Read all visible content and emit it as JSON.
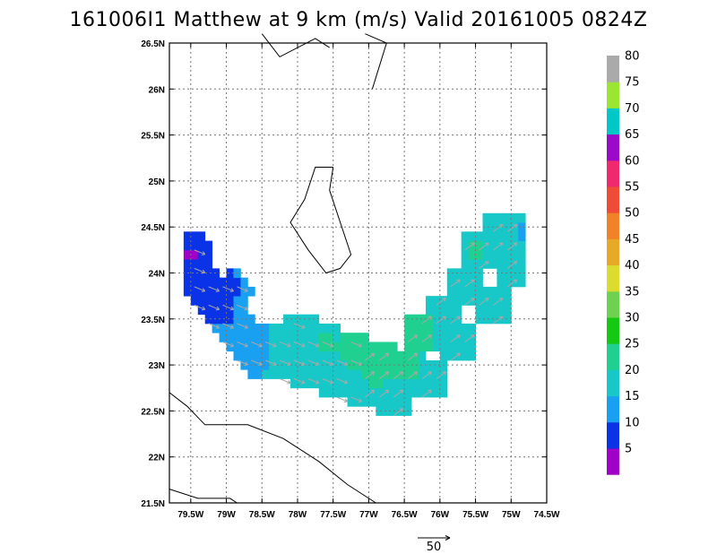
{
  "title": "161006I1 Matthew at 9 km (m/s) Valid 20161005 0824Z",
  "chart_data": {
    "type": "heatmap",
    "title": "161006I1 Matthew at 9 km (m/s) Valid 20161005 0824Z",
    "x_axis": {
      "range": [
        -79.8,
        -74.5
      ],
      "tick_labels": [
        "79.5W",
        "79W",
        "78.5W",
        "78W",
        "77.5W",
        "77W",
        "76.5W",
        "76W",
        "75.5W",
        "75W",
        "74.5W"
      ]
    },
    "y_axis": {
      "range": [
        21.5,
        26.5
      ],
      "tick_labels": [
        "21.5N",
        "22N",
        "22.5N",
        "23N",
        "23.5N",
        "24N",
        "24.5N",
        "25N",
        "25.5N",
        "26N",
        "26.5N"
      ]
    },
    "grid": true,
    "colorbar": {
      "labels": [
        "5",
        "10",
        "15",
        "20",
        "25",
        "30",
        "35",
        "40",
        "45",
        "50",
        "55",
        "60",
        "65",
        "70",
        "75",
        "80"
      ],
      "colors": [
        "#a000c8",
        "#0a32e6",
        "#1aa0f0",
        "#18c8c8",
        "#20d090",
        "#14c814",
        "#6ed250",
        "#dcdc30",
        "#e6aa28",
        "#f08228",
        "#f04b37",
        "#f0286e",
        "#9a0ac8",
        "#00c8c8",
        "#9be632",
        "#aaaaaa"
      ]
    },
    "reference_vector": {
      "label": "50",
      "value": 50
    },
    "wind_field": [
      {
        "lon": -79.5,
        "lat": 24.15,
        "speed": 4
      },
      {
        "lon": -79.35,
        "lat": 23.8,
        "speed": 5
      },
      {
        "lon": -79.2,
        "lat": 23.65,
        "speed": 7
      },
      {
        "lon": -79.05,
        "lat": 23.5,
        "speed": 9
      },
      {
        "lon": -78.95,
        "lat": 23.75,
        "speed": 10
      },
      {
        "lon": -78.9,
        "lat": 23.35,
        "speed": 11
      },
      {
        "lon": -78.75,
        "lat": 23.2,
        "speed": 12
      },
      {
        "lon": -78.6,
        "lat": 23.05,
        "speed": 13
      },
      {
        "lon": -78.4,
        "lat": 23.15,
        "speed": 16
      },
      {
        "lon": -78.2,
        "lat": 23.0,
        "speed": 18
      },
      {
        "lon": -78.0,
        "lat": 23.3,
        "speed": 20
      },
      {
        "lon": -77.9,
        "lat": 22.9,
        "speed": 19
      },
      {
        "lon": -77.7,
        "lat": 23.2,
        "speed": 21
      },
      {
        "lon": -77.5,
        "lat": 22.8,
        "speed": 18
      },
      {
        "lon": -77.3,
        "lat": 23.1,
        "speed": 22
      },
      {
        "lon": -77.1,
        "lat": 22.7,
        "speed": 20
      },
      {
        "lon": -76.9,
        "lat": 23.0,
        "speed": 23
      },
      {
        "lon": -76.7,
        "lat": 22.6,
        "speed": 19
      },
      {
        "lon": -76.5,
        "lat": 22.9,
        "speed": 21
      },
      {
        "lon": -76.3,
        "lat": 23.3,
        "speed": 22
      },
      {
        "lon": -76.2,
        "lat": 22.8,
        "speed": 18
      },
      {
        "lon": -76.0,
        "lat": 23.5,
        "speed": 20
      },
      {
        "lon": -75.8,
        "lat": 23.2,
        "speed": 17
      },
      {
        "lon": -75.7,
        "lat": 23.8,
        "speed": 19
      },
      {
        "lon": -75.5,
        "lat": 24.2,
        "speed": 21
      },
      {
        "lon": -75.3,
        "lat": 23.6,
        "speed": 16
      },
      {
        "lon": -75.2,
        "lat": 24.4,
        "speed": 20
      },
      {
        "lon": -75.0,
        "lat": 24.0,
        "speed": 15
      },
      {
        "lon": -74.95,
        "lat": 24.4,
        "speed": 14
      }
    ],
    "coastlines": [
      {
        "name": "coast-nw-small",
        "points": [
          [
            -78.5,
            26.6
          ],
          [
            -78.25,
            26.35
          ],
          [
            -77.75,
            26.55
          ],
          [
            -77.55,
            26.45
          ]
        ]
      },
      {
        "name": "coast-andros-north",
        "points": [
          [
            -77.05,
            26.6
          ],
          [
            -76.75,
            26.5
          ],
          [
            -76.95,
            26.0
          ]
        ]
      },
      {
        "name": "coast-andros",
        "points": [
          [
            -77.5,
            25.15
          ],
          [
            -77.75,
            25.15
          ],
          [
            -77.9,
            24.8
          ],
          [
            -78.1,
            24.55
          ],
          [
            -77.85,
            24.25
          ],
          [
            -77.6,
            24.0
          ],
          [
            -77.4,
            24.05
          ],
          [
            -77.25,
            24.2
          ],
          [
            -77.55,
            24.9
          ],
          [
            -77.5,
            25.15
          ]
        ]
      },
      {
        "name": "coast-cuba-mid",
        "points": [
          [
            -79.8,
            22.7
          ],
          [
            -79.55,
            22.55
          ],
          [
            -79.3,
            22.35
          ],
          [
            -78.7,
            22.35
          ],
          [
            -78.2,
            22.2
          ],
          [
            -77.7,
            21.95
          ],
          [
            -77.3,
            21.7
          ],
          [
            -76.9,
            21.5
          ]
        ]
      },
      {
        "name": "coast-cuba-south",
        "points": [
          [
            -79.8,
            21.65
          ],
          [
            -79.4,
            21.55
          ],
          [
            -78.95,
            21.55
          ],
          [
            -78.85,
            21.5
          ]
        ]
      }
    ]
  }
}
